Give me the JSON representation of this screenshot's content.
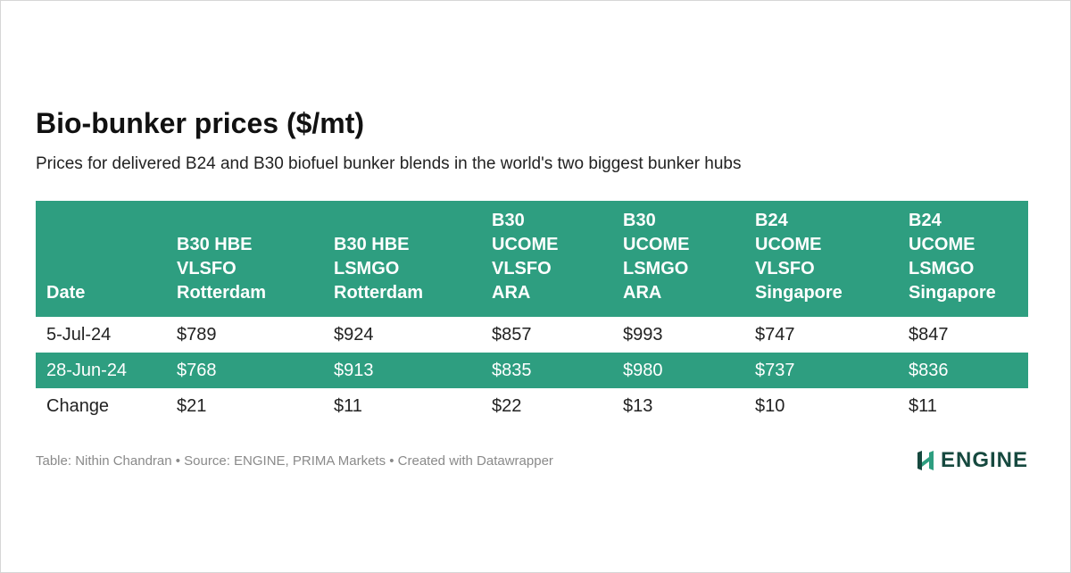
{
  "colors": {
    "accent": "#2e9e80",
    "logo_dark": "#16493f",
    "logo_green": "#2e9e80",
    "title": "#111111",
    "footer": "#8a8a8a"
  },
  "chart_data": {
    "type": "table",
    "title": "Bio-bunker prices ($/mt)",
    "subtitle": "Prices for delivered B24 and B30 biofuel bunker blends in the world's two biggest bunker hubs",
    "columns": [
      [
        "Date"
      ],
      [
        "B30 HBE",
        "VLSFO",
        "Rotterdam"
      ],
      [
        "B30 HBE",
        "LSMGO",
        "Rotterdam"
      ],
      [
        "B30",
        "UCOME",
        "VLSFO",
        "ARA"
      ],
      [
        "B30",
        "UCOME",
        "LSMGO",
        "ARA"
      ],
      [
        "B24",
        "UCOME",
        "VLSFO",
        "Singapore"
      ],
      [
        "B24",
        "UCOME",
        "LSMGO",
        "Singapore"
      ]
    ],
    "rows": [
      [
        "5-Jul-24",
        "$789",
        "$924",
        "$857",
        "$993",
        "$747",
        "$847"
      ],
      [
        "28-Jun-24",
        "$768",
        "$913",
        "$835",
        "$980",
        "$737",
        "$836"
      ],
      [
        "Change",
        "$21",
        "$11",
        "$22",
        "$13",
        "$10",
        "$11"
      ]
    ],
    "shaded_rows": [
      false,
      true,
      false
    ]
  },
  "footer": {
    "credit": "Table: Nithin Chandran • Source: ENGINE, PRIMA Markets • Created with Datawrapper"
  },
  "logo": {
    "text": "ENGINE",
    "icon": "engine-logo-icon"
  }
}
